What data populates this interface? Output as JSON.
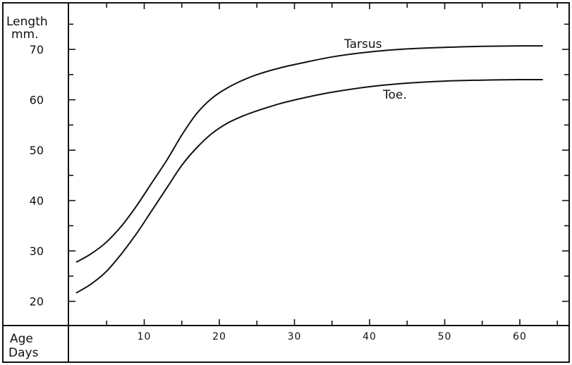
{
  "chart_data": {
    "type": "line",
    "ylabel_line1": "Length",
    "ylabel_line2": "mm.",
    "xlabel_line1": "Age",
    "xlabel_line2": "Days",
    "xlim": [
      0,
      65
    ],
    "ylim": [
      15,
      78
    ],
    "x_ticks": [
      10,
      20,
      30,
      40,
      50,
      60
    ],
    "y_ticks": [
      20,
      30,
      40,
      50,
      60,
      70
    ],
    "grid": false,
    "series": [
      {
        "name": "Tarsus",
        "x": [
          1,
          3,
          5,
          7,
          9,
          11,
          13,
          15,
          17,
          19,
          21,
          23,
          25,
          28,
          31,
          35,
          40,
          45,
          50,
          55,
          60,
          63
        ],
        "values": [
          27.8,
          29.5,
          31.8,
          35.0,
          39.0,
          43.5,
          48.0,
          53.0,
          57.3,
          60.3,
          62.3,
          63.8,
          65.0,
          66.3,
          67.3,
          68.5,
          69.5,
          70.1,
          70.4,
          70.6,
          70.7,
          70.7
        ]
      },
      {
        "name": "Toe.",
        "x": [
          1,
          3,
          5,
          7,
          9,
          11,
          13,
          15,
          17,
          19,
          21,
          23,
          25,
          28,
          31,
          35,
          40,
          45,
          50,
          55,
          60,
          63
        ],
        "values": [
          21.7,
          23.5,
          26.0,
          29.5,
          33.5,
          38.0,
          42.5,
          47.0,
          50.5,
          53.3,
          55.3,
          56.7,
          57.8,
          59.2,
          60.3,
          61.5,
          62.6,
          63.3,
          63.7,
          63.9,
          64.0,
          64.0
        ]
      }
    ]
  }
}
